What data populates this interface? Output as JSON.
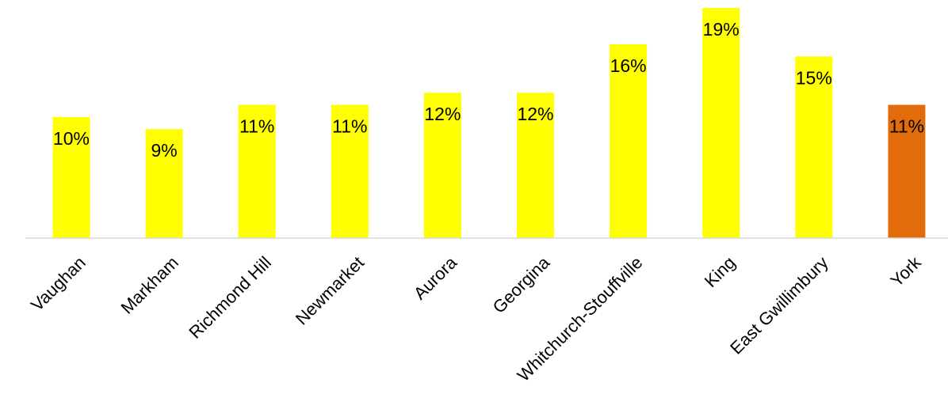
{
  "chart_data": {
    "type": "bar",
    "title": "",
    "xlabel": "",
    "ylabel": "",
    "ylim": [
      0,
      19
    ],
    "grid": false,
    "legend": "none",
    "categories": [
      "Vaughan",
      "Markham",
      "Richmond Hill",
      "Newmarket",
      "Aurora",
      "Georgina",
      "Whitchurch-Stouffville",
      "King",
      "East Gwillimbury",
      "York"
    ],
    "values": [
      10,
      9,
      11,
      11,
      12,
      12,
      16,
      19,
      15,
      11
    ],
    "data_labels": [
      "10%",
      "9%",
      "11%",
      "11%",
      "12%",
      "12%",
      "16%",
      "19%",
      "15%",
      "11%"
    ],
    "colors": {
      "default_bar": "#FFFF00",
      "highlight_bar": "#E36C0A",
      "axis": "#D9D9D9",
      "text": "#000000"
    },
    "highlight_category": "York"
  }
}
